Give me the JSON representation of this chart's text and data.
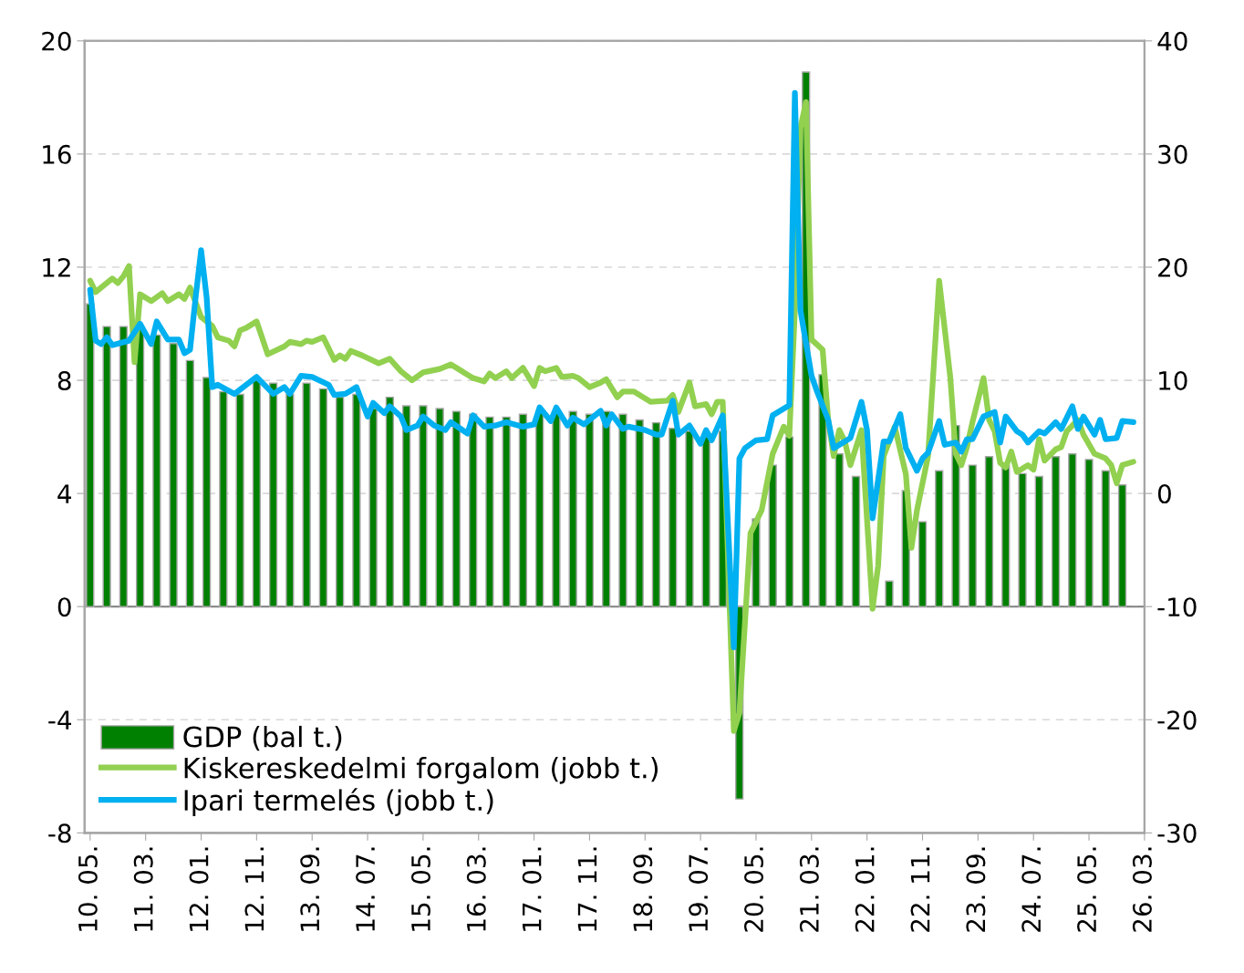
{
  "chart_data": {
    "type": "bar",
    "x": [
      "2010-05",
      "2010-08",
      "2010-11",
      "2011-02",
      "2011-05",
      "2011-08",
      "2011-11",
      "2012-02",
      "2012-05",
      "2012-08",
      "2012-11",
      "2013-02",
      "2013-05",
      "2013-08",
      "2013-11",
      "2014-02",
      "2014-05",
      "2014-08",
      "2014-11",
      "2015-02",
      "2015-05",
      "2015-08",
      "2015-11",
      "2016-02",
      "2016-05",
      "2016-08",
      "2016-11",
      "2017-02",
      "2017-05",
      "2017-08",
      "2017-11",
      "2018-02",
      "2018-05",
      "2018-08",
      "2018-11",
      "2019-02",
      "2019-05",
      "2019-08",
      "2019-11",
      "2020-02",
      "2020-05",
      "2020-08",
      "2020-11",
      "2021-02",
      "2021-05",
      "2021-08",
      "2021-11",
      "2022-02",
      "2022-05",
      "2022-08",
      "2022-11",
      "2023-02",
      "2023-05",
      "2023-08",
      "2023-11",
      "2024-02",
      "2024-05",
      "2024-08",
      "2024-11",
      "2025-02",
      "2025-05",
      "2025-08",
      "2025-11"
    ],
    "series": [
      {
        "name": "GDP (bal t.)",
        "color": "#008000",
        "values": [
          10.7,
          9.9,
          9.9,
          9.8,
          9.6,
          9.3,
          8.7,
          8.1,
          7.6,
          7.5,
          8.0,
          7.9,
          7.5,
          7.9,
          7.7,
          7.4,
          7.5,
          7.0,
          7.4,
          7.1,
          7.1,
          7.0,
          6.9,
          6.8,
          6.7,
          6.7,
          6.8,
          6.9,
          6.9,
          6.9,
          6.8,
          6.9,
          6.8,
          6.6,
          6.5,
          6.3,
          6.2,
          6.0,
          6.2,
          -6.8,
          3.1,
          5.0,
          6.0,
          18.9,
          8.2,
          5.4,
          4.6,
          null,
          0.9,
          4.1,
          3.0,
          4.8,
          6.4,
          5.0,
          5.3,
          5.0,
          4.7,
          4.6,
          5.3,
          5.4,
          5.2,
          4.8,
          4.3
        ]
      },
      {
        "name": "Kiskereskedelmi forgalom (jobb t.)",
        "color": "#92d050",
        "type": "line",
        "axis": "y2",
        "x": [
          "2010-05",
          "2010-06",
          "2010-09",
          "2010-10",
          "2010-11",
          "2010-12",
          "2011-01",
          "2011-02",
          "2011-04",
          "2011-06",
          "2011-07",
          "2011-09",
          "2011-10",
          "2011-11",
          "2012-01",
          "2012-03",
          "2012-04",
          "2012-06",
          "2012-07",
          "2012-08",
          "2012-09",
          "2012-11",
          "2013-01",
          "2013-04",
          "2013-05",
          "2013-07",
          "2013-08",
          "2013-09",
          "2013-11",
          "2014-01",
          "2014-02",
          "2014-03",
          "2014-04",
          "2014-06",
          "2014-09",
          "2014-11",
          "2015-01",
          "2015-03",
          "2015-05",
          "2015-08",
          "2015-10",
          "2016-02",
          "2016-04",
          "2016-05",
          "2016-06",
          "2016-08",
          "2016-09",
          "2016-11",
          "2017-01",
          "2017-02",
          "2017-03",
          "2017-05",
          "2017-06",
          "2017-08",
          "2017-09",
          "2017-11",
          "2018-01",
          "2018-02",
          "2018-04",
          "2018-05",
          "2018-07",
          "2018-10",
          "2019-01",
          "2019-02",
          "2019-03",
          "2019-05",
          "2019-06",
          "2019-08",
          "2019-09",
          "2019-10",
          "2019-11",
          "2020-01",
          "2020-02",
          "2020-04",
          "2020-06",
          "2020-08",
          "2020-10",
          "2020-11",
          "2020-12",
          "2021-01",
          "2021-02",
          "2021-03",
          "2021-05",
          "2021-06",
          "2021-07",
          "2021-08",
          "2021-09",
          "2021-10",
          "2021-12",
          "2022-02",
          "2022-03",
          "2022-04",
          "2022-06",
          "2022-08",
          "2022-09",
          "2022-10",
          "2022-12",
          "2023-02",
          "2023-04",
          "2023-05",
          "2023-06",
          "2023-07",
          "2023-08",
          "2023-10",
          "2023-11",
          "2023-12",
          "2024-01",
          "2024-02",
          "2024-03",
          "2024-04",
          "2024-06",
          "2024-07",
          "2024-08",
          "2024-09",
          "2024-11",
          "2024-12",
          "2025-01",
          "2025-03",
          "2025-04",
          "2025-06",
          "2025-08",
          "2025-09",
          "2025-10",
          "2025-11",
          "2026-01"
        ],
        "values": [
          18.8,
          17.8,
          19.0,
          18.6,
          19.2,
          20.1,
          11.6,
          17.6,
          17.0,
          17.7,
          17.0,
          17.6,
          17.2,
          18.2,
          15.6,
          14.8,
          13.8,
          13.5,
          13.0,
          14.4,
          14.6,
          15.2,
          12.3,
          13.0,
          13.4,
          13.2,
          13.5,
          13.4,
          13.8,
          11.8,
          12.2,
          11.9,
          12.6,
          12.2,
          11.5,
          11.9,
          10.8,
          10.0,
          10.7,
          11.0,
          11.4,
          10.2,
          9.9,
          10.6,
          10.2,
          10.8,
          10.2,
          11.1,
          9.5,
          11.1,
          10.8,
          11.1,
          10.3,
          10.4,
          10.2,
          9.4,
          9.8,
          10.1,
          8.5,
          9.0,
          9.0,
          8.1,
          8.2,
          8.7,
          7.2,
          9.8,
          7.7,
          7.9,
          7.0,
          8.1,
          8.1,
          -21.0,
          -19.4,
          -3.5,
          -1.5,
          3.5,
          5.9,
          5.1,
          16.2,
          32.3,
          34.6,
          13.6,
          12.7,
          6.5,
          3.3,
          5.6,
          4.6,
          2.5,
          5.6,
          -10.2,
          -6.4,
          3.3,
          5.9,
          1.7,
          -4.8,
          -1.5,
          3.3,
          18.8,
          10.3,
          3.5,
          2.5,
          4.1,
          6.3,
          10.2,
          6.5,
          5.5,
          2.7,
          2.3,
          3.7,
          1.9,
          2.5,
          2.1,
          4.8,
          2.9,
          3.9,
          4.1,
          5.5,
          6.5,
          5.2,
          3.5,
          3.1,
          2.5,
          0.9,
          2.5,
          2.8
        ]
      },
      {
        "name": "Ipari termelés (jobb t.)",
        "color": "#00b0f0",
        "type": "line",
        "axis": "y2",
        "x": [
          "2010-05",
          "2010-06",
          "2010-07",
          "2010-08",
          "2010-09",
          "2010-12",
          "2011-02",
          "2011-04",
          "2011-05",
          "2011-07",
          "2011-09",
          "2011-10",
          "2011-11",
          "2011-12",
          "2012-01",
          "2012-02",
          "2012-03",
          "2012-04",
          "2012-07",
          "2012-11",
          "2013-02",
          "2013-04",
          "2013-05",
          "2013-07",
          "2013-09",
          "2013-12",
          "2014-01",
          "2014-03",
          "2014-05",
          "2014-07",
          "2014-08",
          "2014-10",
          "2014-11",
          "2015-01",
          "2015-02",
          "2015-04",
          "2015-05",
          "2015-07",
          "2015-09",
          "2015-10",
          "2016-01",
          "2016-02",
          "2016-04",
          "2016-06",
          "2016-08",
          "2016-11",
          "2017-01",
          "2017-02",
          "2017-04",
          "2017-05",
          "2017-07",
          "2017-08",
          "2017-10",
          "2018-01",
          "2018-02",
          "2018-03",
          "2018-05",
          "2018-06",
          "2018-09",
          "2018-11",
          "2018-12",
          "2019-02",
          "2019-03",
          "2019-05",
          "2019-07",
          "2019-08",
          "2019-09",
          "2019-11",
          "2020-01",
          "2020-02",
          "2020-03",
          "2020-05",
          "2020-07",
          "2020-08",
          "2020-11",
          "2020-12",
          "2021-01",
          "2021-03",
          "2021-04",
          "2021-06",
          "2021-07",
          "2021-10",
          "2021-12",
          "2022-01",
          "2022-02",
          "2022-04",
          "2022-05",
          "2022-07",
          "2022-08",
          "2022-10",
          "2022-11",
          "2022-12",
          "2023-02",
          "2023-03",
          "2023-05",
          "2023-06",
          "2023-07",
          "2023-08",
          "2023-10",
          "2023-12",
          "2024-01",
          "2024-02",
          "2024-04",
          "2024-05",
          "2024-06",
          "2024-08",
          "2024-09",
          "2024-11",
          "2024-12",
          "2025-02",
          "2025-03",
          "2025-04",
          "2025-06",
          "2025-07",
          "2025-08",
          "2025-10",
          "2025-11",
          "2026-01"
        ],
        "values": [
          18.0,
          13.5,
          13.2,
          13.8,
          13.1,
          13.5,
          15.0,
          13.2,
          15.2,
          13.6,
          13.6,
          12.4,
          12.7,
          17.3,
          21.5,
          17.3,
          9.4,
          9.6,
          8.8,
          10.3,
          8.8,
          9.4,
          8.8,
          10.4,
          10.3,
          9.6,
          8.7,
          8.8,
          9.4,
          6.8,
          8.0,
          7.1,
          7.7,
          6.8,
          5.6,
          6.0,
          6.8,
          6.0,
          5.6,
          6.3,
          5.3,
          6.9,
          5.9,
          6.0,
          6.3,
          5.9,
          6.1,
          7.6,
          6.4,
          7.6,
          6.0,
          6.7,
          6.1,
          7.3,
          6.0,
          7.0,
          5.7,
          5.9,
          5.6,
          5.2,
          5.2,
          8.2,
          5.2,
          6.0,
          4.4,
          5.6,
          4.7,
          6.9,
          -13.6,
          3.1,
          4.0,
          4.7,
          4.8,
          6.9,
          7.8,
          35.4,
          16.2,
          10.4,
          9.0,
          6.5,
          4.0,
          4.9,
          8.1,
          5.6,
          -2.2,
          4.6,
          4.6,
          7.0,
          4.0,
          2.0,
          3.1,
          3.6,
          6.4,
          4.3,
          4.5,
          3.7,
          4.8,
          4.8,
          6.8,
          7.2,
          4.5,
          6.8,
          5.5,
          5.2,
          4.5,
          5.5,
          5.3,
          6.3,
          5.7,
          7.7,
          5.7,
          6.8,
          5.2,
          6.5,
          4.8,
          4.9,
          6.4,
          6.3
        ]
      }
    ],
    "xlim": [
      "2010-04",
      "2026-03"
    ],
    "xticks": [
      {
        "value": "2010-05",
        "label": "10. 05."
      },
      {
        "value": "2011-03",
        "label": "11. 03."
      },
      {
        "value": "2012-01",
        "label": "12. 01."
      },
      {
        "value": "2012-11",
        "label": "12. 11."
      },
      {
        "value": "2013-09",
        "label": "13. 09."
      },
      {
        "value": "2014-07",
        "label": "14. 07."
      },
      {
        "value": "2015-05",
        "label": "15. 05."
      },
      {
        "value": "2016-03",
        "label": "16. 03."
      },
      {
        "value": "2017-01",
        "label": "17. 01."
      },
      {
        "value": "2017-11",
        "label": "17. 11."
      },
      {
        "value": "2018-09",
        "label": "18. 09."
      },
      {
        "value": "2019-07",
        "label": "19. 07."
      },
      {
        "value": "2020-05",
        "label": "20. 05."
      },
      {
        "value": "2021-03",
        "label": "21. 03."
      },
      {
        "value": "2022-01",
        "label": "22. 01."
      },
      {
        "value": "2022-11",
        "label": "22. 11."
      },
      {
        "value": "2023-09",
        "label": "23. 09."
      },
      {
        "value": "2024-07",
        "label": "24. 07."
      },
      {
        "value": "2025-05",
        "label": "25. 05."
      },
      {
        "value": "2026-03",
        "label": "26. 03."
      }
    ],
    "ylim": [
      -8,
      20
    ],
    "yticks": [
      -8,
      -4,
      0,
      4,
      8,
      12,
      16,
      20
    ],
    "y2lim": [
      -30,
      40
    ],
    "y2ticks": [
      -30,
      -20,
      -10,
      0,
      10,
      20,
      30,
      40
    ],
    "ref_lines": [
      {
        "axis": "y",
        "value": 0,
        "color": "#808080"
      }
    ],
    "grid": "y",
    "legend": "bottom left",
    "line_style": "solid",
    "marker": "none"
  }
}
